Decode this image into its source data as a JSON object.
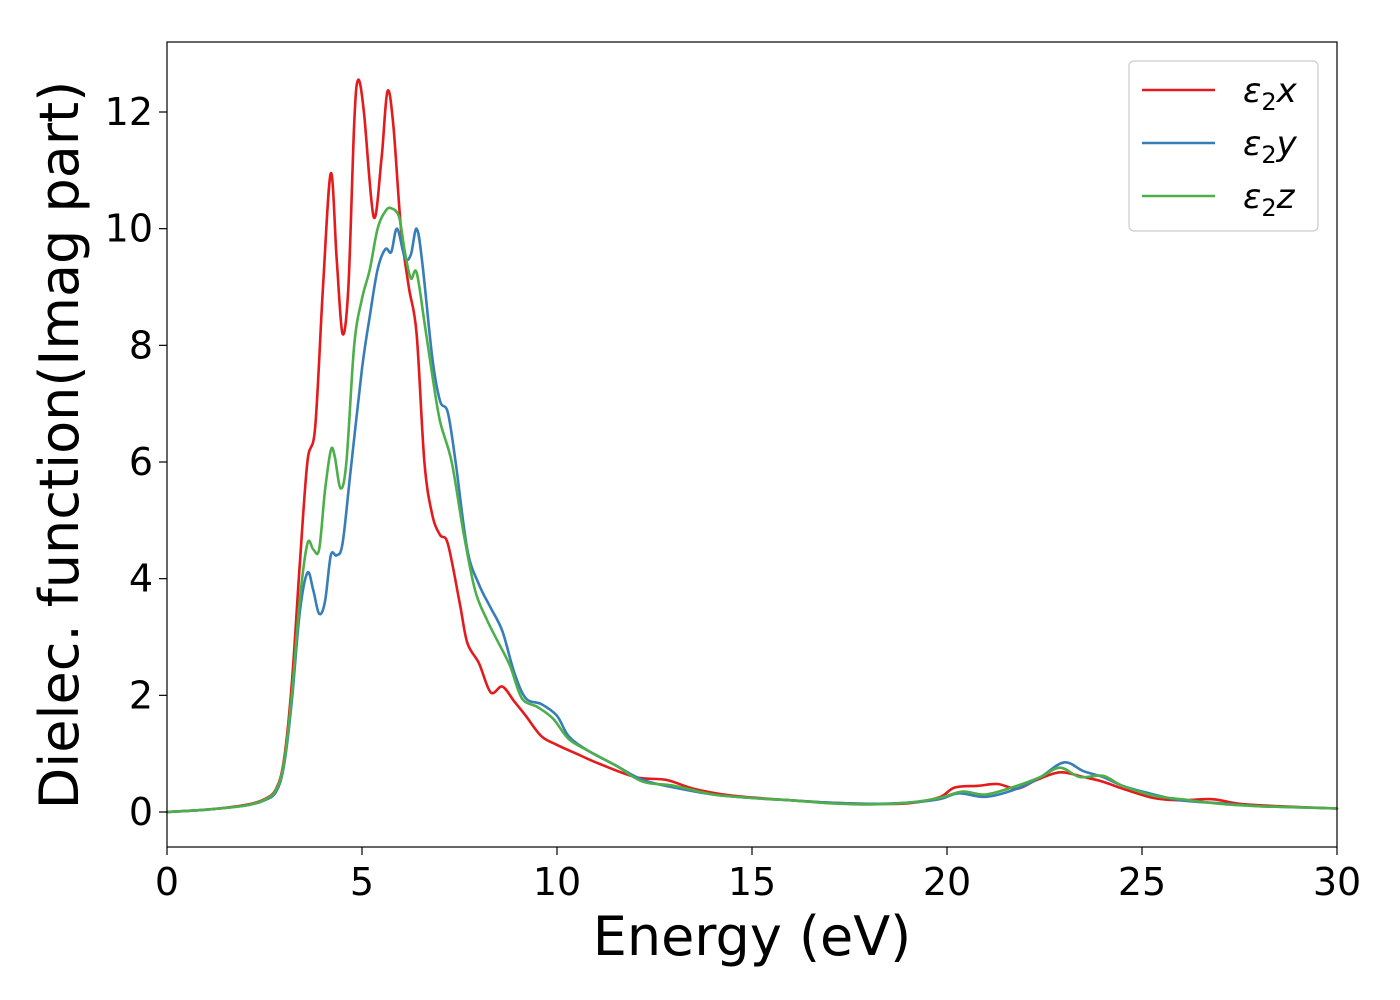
{
  "chart_data": {
    "type": "line",
    "title": "",
    "xlabel": "Energy (eV)",
    "ylabel": "Dielec. function(Imag part)",
    "xlim": [
      0,
      30
    ],
    "ylim": [
      -0.6,
      13.2
    ],
    "xticks": [
      0,
      5,
      10,
      15,
      20,
      25,
      30
    ],
    "yticks": [
      0,
      2,
      4,
      6,
      8,
      10,
      12
    ],
    "grid": false,
    "legend_position": "top-right",
    "series": [
      {
        "name": "ε₂x",
        "legend": {
          "base": "ε",
          "sub": "2",
          "var": "x"
        },
        "color": "#e41a1c",
        "points": [
          [
            0,
            0
          ],
          [
            1,
            0.04
          ],
          [
            2,
            0.12
          ],
          [
            2.5,
            0.22
          ],
          [
            2.8,
            0.4
          ],
          [
            3.0,
            0.9
          ],
          [
            3.2,
            2.2
          ],
          [
            3.4,
            4.2
          ],
          [
            3.6,
            6.0
          ],
          [
            3.8,
            6.6
          ],
          [
            4.0,
            9.0
          ],
          [
            4.2,
            10.95
          ],
          [
            4.35,
            9.5
          ],
          [
            4.5,
            8.2
          ],
          [
            4.65,
            9.0
          ],
          [
            4.8,
            11.8
          ],
          [
            4.9,
            12.55
          ],
          [
            5.05,
            12.0
          ],
          [
            5.3,
            10.2
          ],
          [
            5.5,
            11.2
          ],
          [
            5.65,
            12.35
          ],
          [
            5.8,
            11.8
          ],
          [
            6.0,
            10.0
          ],
          [
            6.2,
            9.0
          ],
          [
            6.4,
            8.2
          ],
          [
            6.6,
            6.0
          ],
          [
            6.8,
            5.1
          ],
          [
            7.0,
            4.75
          ],
          [
            7.2,
            4.6
          ],
          [
            7.5,
            3.6
          ],
          [
            7.7,
            2.9
          ],
          [
            8.0,
            2.55
          ],
          [
            8.3,
            2.05
          ],
          [
            8.6,
            2.15
          ],
          [
            8.9,
            1.9
          ],
          [
            9.2,
            1.65
          ],
          [
            9.6,
            1.3
          ],
          [
            10.0,
            1.15
          ],
          [
            10.5,
            1.0
          ],
          [
            11.0,
            0.85
          ],
          [
            12.0,
            0.6
          ],
          [
            12.8,
            0.55
          ],
          [
            13.5,
            0.4
          ],
          [
            14.5,
            0.28
          ],
          [
            16,
            0.2
          ],
          [
            17,
            0.16
          ],
          [
            18,
            0.14
          ],
          [
            19,
            0.15
          ],
          [
            19.8,
            0.25
          ],
          [
            20.2,
            0.42
          ],
          [
            20.8,
            0.45
          ],
          [
            21.3,
            0.48
          ],
          [
            21.8,
            0.4
          ],
          [
            22.3,
            0.55
          ],
          [
            22.9,
            0.68
          ],
          [
            23.5,
            0.6
          ],
          [
            24,
            0.52
          ],
          [
            24.5,
            0.4
          ],
          [
            25.3,
            0.24
          ],
          [
            26,
            0.2
          ],
          [
            26.8,
            0.22
          ],
          [
            27.5,
            0.14
          ],
          [
            28.5,
            0.1
          ],
          [
            30,
            0.06
          ]
        ]
      },
      {
        "name": "ε₂y",
        "legend": {
          "base": "ε",
          "sub": "2",
          "var": "y"
        },
        "color": "#377eb8",
        "points": [
          [
            0,
            0
          ],
          [
            1,
            0.04
          ],
          [
            2,
            0.11
          ],
          [
            2.5,
            0.2
          ],
          [
            2.8,
            0.35
          ],
          [
            3.0,
            0.8
          ],
          [
            3.2,
            1.9
          ],
          [
            3.4,
            3.4
          ],
          [
            3.6,
            4.1
          ],
          [
            3.75,
            3.8
          ],
          [
            3.9,
            3.4
          ],
          [
            4.05,
            3.6
          ],
          [
            4.2,
            4.4
          ],
          [
            4.35,
            4.4
          ],
          [
            4.5,
            4.6
          ],
          [
            4.7,
            5.8
          ],
          [
            5.0,
            7.6
          ],
          [
            5.2,
            8.5
          ],
          [
            5.4,
            9.3
          ],
          [
            5.6,
            9.65
          ],
          [
            5.75,
            9.6
          ],
          [
            5.9,
            10.0
          ],
          [
            6.1,
            9.5
          ],
          [
            6.25,
            9.55
          ],
          [
            6.4,
            10.0
          ],
          [
            6.55,
            9.4
          ],
          [
            6.8,
            7.8
          ],
          [
            7.0,
            7.05
          ],
          [
            7.2,
            6.85
          ],
          [
            7.4,
            6.0
          ],
          [
            7.7,
            4.5
          ],
          [
            8.0,
            3.9
          ],
          [
            8.3,
            3.5
          ],
          [
            8.6,
            3.1
          ],
          [
            8.9,
            2.4
          ],
          [
            9.2,
            1.95
          ],
          [
            9.6,
            1.85
          ],
          [
            10.0,
            1.65
          ],
          [
            10.3,
            1.3
          ],
          [
            10.8,
            1.05
          ],
          [
            11.5,
            0.8
          ],
          [
            12.2,
            0.55
          ],
          [
            13,
            0.42
          ],
          [
            14,
            0.3
          ],
          [
            15,
            0.24
          ],
          [
            16,
            0.2
          ],
          [
            17,
            0.16
          ],
          [
            18,
            0.14
          ],
          [
            19,
            0.16
          ],
          [
            19.8,
            0.22
          ],
          [
            20.3,
            0.32
          ],
          [
            21.0,
            0.26
          ],
          [
            21.8,
            0.4
          ],
          [
            22.4,
            0.6
          ],
          [
            23.0,
            0.85
          ],
          [
            23.5,
            0.7
          ],
          [
            24,
            0.6
          ],
          [
            24.5,
            0.45
          ],
          [
            25.3,
            0.3
          ],
          [
            26,
            0.2
          ],
          [
            27,
            0.15
          ],
          [
            28,
            0.1
          ],
          [
            29,
            0.08
          ],
          [
            30,
            0.06
          ]
        ]
      },
      {
        "name": "ε₂z",
        "legend": {
          "base": "ε",
          "sub": "2",
          "var": "z"
        },
        "color": "#4daf4a",
        "points": [
          [
            0,
            0
          ],
          [
            1,
            0.04
          ],
          [
            2,
            0.11
          ],
          [
            2.5,
            0.21
          ],
          [
            2.8,
            0.38
          ],
          [
            3.0,
            0.85
          ],
          [
            3.2,
            2.0
          ],
          [
            3.4,
            3.6
          ],
          [
            3.6,
            4.6
          ],
          [
            3.75,
            4.5
          ],
          [
            3.9,
            4.5
          ],
          [
            4.05,
            5.5
          ],
          [
            4.2,
            6.2
          ],
          [
            4.3,
            6.1
          ],
          [
            4.45,
            5.55
          ],
          [
            4.6,
            6.0
          ],
          [
            4.8,
            8.0
          ],
          [
            5.0,
            8.8
          ],
          [
            5.2,
            9.3
          ],
          [
            5.4,
            10.0
          ],
          [
            5.6,
            10.3
          ],
          [
            5.75,
            10.35
          ],
          [
            5.95,
            10.2
          ],
          [
            6.1,
            9.6
          ],
          [
            6.25,
            9.15
          ],
          [
            6.4,
            9.25
          ],
          [
            6.6,
            8.4
          ],
          [
            6.8,
            7.5
          ],
          [
            7.0,
            6.7
          ],
          [
            7.3,
            6.0
          ],
          [
            7.6,
            4.8
          ],
          [
            7.9,
            3.8
          ],
          [
            8.2,
            3.3
          ],
          [
            8.5,
            2.9
          ],
          [
            8.8,
            2.5
          ],
          [
            9.1,
            1.95
          ],
          [
            9.5,
            1.8
          ],
          [
            9.9,
            1.6
          ],
          [
            10.3,
            1.25
          ],
          [
            10.8,
            1.05
          ],
          [
            11.5,
            0.8
          ],
          [
            12.2,
            0.52
          ],
          [
            13,
            0.45
          ],
          [
            14,
            0.3
          ],
          [
            15,
            0.24
          ],
          [
            16,
            0.2
          ],
          [
            17,
            0.15
          ],
          [
            18,
            0.13
          ],
          [
            19,
            0.16
          ],
          [
            19.8,
            0.24
          ],
          [
            20.4,
            0.35
          ],
          [
            21.0,
            0.3
          ],
          [
            21.8,
            0.45
          ],
          [
            22.4,
            0.6
          ],
          [
            22.9,
            0.76
          ],
          [
            23.4,
            0.6
          ],
          [
            24,
            0.62
          ],
          [
            24.5,
            0.45
          ],
          [
            25.3,
            0.28
          ],
          [
            26,
            0.22
          ],
          [
            27,
            0.14
          ],
          [
            28,
            0.1
          ],
          [
            29,
            0.08
          ],
          [
            30,
            0.06
          ]
        ]
      }
    ]
  }
}
